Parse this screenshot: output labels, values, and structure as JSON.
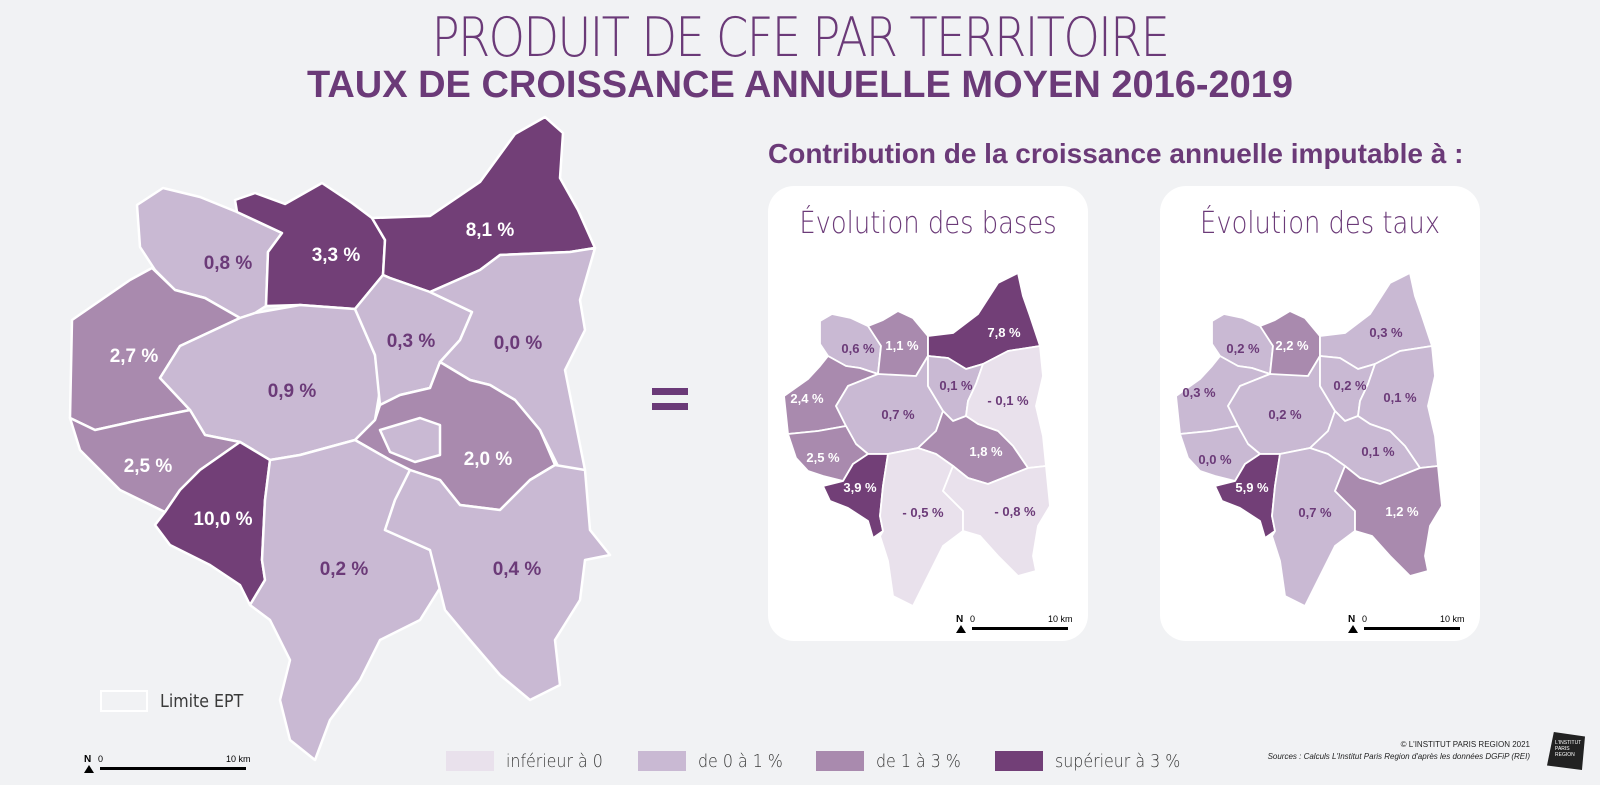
{
  "title": "PRODUIT DE CFE PAR TERRITOIRE",
  "subtitle": "TAUX DE CROISSANCE ANNUELLE MOYEN 2016-2019",
  "contribution_title": "Contribution de la croissance annuelle imputable à :",
  "colors": {
    "inferieur_a_0": "#e9e1ec",
    "de_0_a_1": "#c9b9d3",
    "de_1_a_3": "#a98aae",
    "superieur_a_3": "#723f77",
    "label_dark": "#6b3a78",
    "label_light": "#ffffff"
  },
  "main_map": {
    "labels": [
      "0,8 %",
      "3,3 %",
      "8,1 %",
      "2,7 %",
      "0,9 %",
      "0,3 %",
      "0,0 %",
      "2,5 %",
      "2,0 %",
      "10,0 %",
      "0,2 %",
      "0,4 %"
    ]
  },
  "cards": [
    {
      "title": "Évolution des bases",
      "labels": [
        "0,6 %",
        "1,1 %",
        "7,8 %",
        "2,4 %",
        "0,7 %",
        "0,1 %",
        "- 0,1 %",
        "2,5 %",
        "1,8 %",
        "3,9 %",
        "- 0,5 %",
        "- 0,8 %"
      ]
    },
    {
      "title": "Évolution des taux",
      "labels": [
        "0,2 %",
        "2,2 %",
        "0,3 %",
        "0,3 %",
        "0,2 %",
        "0,2 %",
        "0,1 %",
        "0,0 %",
        "0,1 %",
        "5,9 %",
        "0,7 %",
        "1,2 %"
      ]
    }
  ],
  "legend": [
    {
      "label": "inférieur à 0",
      "color": "#e9e1ec"
    },
    {
      "label": "de 0 à 1 %",
      "color": "#c9b9d3"
    },
    {
      "label": "de 1 à 3 %",
      "color": "#a98aae"
    },
    {
      "label": "supérieur à 3 %",
      "color": "#723f77"
    }
  ],
  "limit_label": "Limite EPT",
  "scale": {
    "north": "N",
    "zero": "0",
    "distance": "10 km"
  },
  "credits": {
    "copyright": "© L'INSTITUT PARIS REGION 2021",
    "sources": "Sources : Calculs L'Institut Paris Region d'après les données DGFiP (REI)"
  },
  "logo_text": [
    "L'INSTITUT",
    "PARIS",
    "REGION"
  ]
}
